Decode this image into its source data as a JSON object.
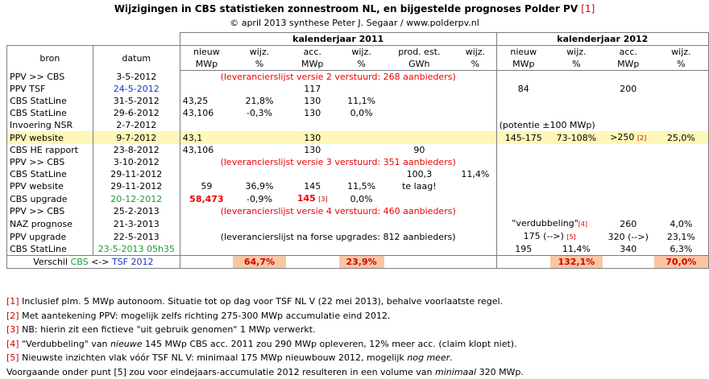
{
  "title": {
    "text": "Wijzigingen in CBS statistieken zonnestroom NL, en bijgestelde prognoses Polder PV",
    "ref": "[1]"
  },
  "subtitle": "© april 2013 synthese Peter J. Segaar / www.polderpv.nl",
  "headers": {
    "group2011": "kalenderjaar 2011",
    "group2012": "kalenderjaar 2012",
    "bron": "bron",
    "datum": "datum",
    "nieuw1": "nieuw",
    "nieuw2": "MWp",
    "wijz1": "wijz.",
    "wijz2": "%",
    "acc1": "acc.",
    "acc2": "MWp",
    "prod1": "prod. est.",
    "prod2": "GWh"
  },
  "rows": [
    {
      "bron": "PPV >> CBS",
      "datum": "3-5-2012",
      "note": "(leverancierslijst versie 2 verstuurd: 268 aanbieders)"
    },
    {
      "bron": "PPV TSF",
      "datum": "24-5-2012",
      "acc11": "117",
      "n12": "84",
      "acc12": "200"
    },
    {
      "bron": "CBS StatLine",
      "datum": "31-5-2012",
      "n11": "43,25",
      "w11": "21,8%",
      "acc11": "130",
      "aw11": "11,1%"
    },
    {
      "bron": "CBS StatLine",
      "datum": "29-6-2012",
      "n11": "43,106",
      "w11": "-0,3%",
      "acc11": "130",
      "aw11": "0,0%"
    },
    {
      "bron": "Invoering NSR",
      "datum": "2-7-2012",
      "note12": "(potentie ±100 MWp)"
    },
    {
      "bron": "PPV website",
      "datum": "9-7-2012",
      "n11": "43,1",
      "acc11": "130",
      "n12": "145-175",
      "w12": "73-108%",
      "acc12": ">250",
      "acc12ref": "[2]",
      "aw12": "25,0%"
    },
    {
      "bron": "CBS HE rapport",
      "datum": "23-8-2012",
      "n11": "43,106",
      "acc11": "130",
      "prod": "90"
    },
    {
      "bron": "PPV >> CBS",
      "datum": "3-10-2012",
      "note": "(leverancierslijst versie 3 verstuurd: 351 aanbieders)"
    },
    {
      "bron": "CBS StatLine",
      "datum": "29-11-2012",
      "prod": "100,3",
      "pw": "11,4%"
    },
    {
      "bron": "PPV website",
      "datum": "29-11-2012",
      "n11": "59",
      "w11": "36,9%",
      "acc11": "145",
      "aw11": "11,5%",
      "prod": "te laag!"
    },
    {
      "bron": "CBS upgrade",
      "datum": "20-12-2012",
      "n11": "58,473",
      "w11": "-0,9%",
      "acc11": "145",
      "acc11ref": "[3]",
      "aw11": "0,0%"
    },
    {
      "bron": "PPV >> CBS",
      "datum": "25-2-2013",
      "note": "(leverancierslijst versie 4 verstuurd: 460 aanbieders)"
    },
    {
      "bron": "NAZ prognose",
      "datum": "21-3-2013",
      "note12": "\"verdubbeling\"",
      "note12ref": "[4]",
      "acc12": "260",
      "aw12": "4,0%"
    },
    {
      "bron": "PPV upgrade",
      "datum": "22-5-2013",
      "note": "(leverancierslijst na forse upgrades: 812 aanbieders)",
      "n12": "175 (-->)",
      "n12ref": "[5]",
      "acc12": "320 (-->)",
      "aw12": "23,1%"
    },
    {
      "bron": "CBS StatLine",
      "datum": "23-5-2013 05h35",
      "n12": "195",
      "w12": "11,4%",
      "acc12": "340",
      "aw12": "6,3%"
    }
  ],
  "verschil": {
    "label": "Verschil",
    "cbs": "CBS",
    "arrow": "<->",
    "tsf": "TSF 2012",
    "w11": "64,7%",
    "aw11": "23,9%",
    "w12": "132,1%",
    "aw12": "70,0%"
  },
  "notes": [
    {
      "ref": "[1]",
      "text": "Inclusief plm. 5 MWp autonoom. Situatie tot op dag voor TSF NL V (22 mei 2013), behalve voorlaatste regel."
    },
    {
      "ref": "[2]",
      "text": "Met aantekening PPV: mogelijk zelfs richting 275-300 MWp accumulatie eind 2012."
    },
    {
      "ref": "[3]",
      "text": "NB: hierin zit een fictieve \"uit gebruik genomen\" 1 MWp verwerkt."
    },
    {
      "ref": "[4]",
      "text_a": "\"Verdubbeling\" van ",
      "text_i": "nieuwe",
      "text_b": " 145 MWp CBS acc. 2011 zou 290 MWp opleveren, 12% meer acc. (claim klopt  niet)."
    },
    {
      "ref": "[5]",
      "text_a": "Nieuwste inzichten vlak vóór TSF NL V: minimaal 175 MWp nieuwbouw 2012, mogelijk ",
      "text_i": "nog meer",
      "text_b": "."
    },
    {
      "text_a": "Voorgaande onder punt [5] zou voor eindejaars-accumulatie 2012 resulteren in een volume van ",
      "text_i": "minimaal",
      "text_b": " 320 MWp."
    }
  ]
}
